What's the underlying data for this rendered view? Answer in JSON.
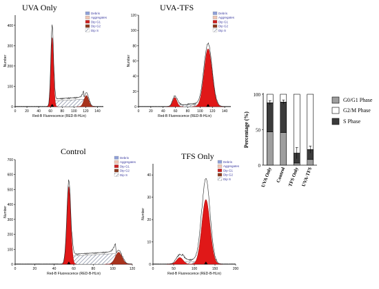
{
  "chart_data": [
    {
      "type": "area",
      "title": "UVA Only",
      "xlabel": "Red-B Fluorescence (RED-B-HLin)",
      "ylabel": "Number",
      "xlim": [
        0,
        150
      ],
      "ylim": [
        0,
        450
      ],
      "xticks": [
        0,
        20,
        40,
        60,
        80,
        100,
        120,
        140
      ],
      "yticks": [
        0,
        100,
        200,
        300,
        400
      ],
      "legend": [
        "Debris",
        "Aggregates",
        "Dip G1",
        "Dip G2",
        "Dip S"
      ],
      "legend_position": "top-right",
      "g1": {
        "center": 63,
        "width": 2.3,
        "height": 340
      },
      "g2": {
        "center": 121,
        "width": 4.0,
        "height": 55
      },
      "s_phase": {
        "from": 66,
        "to": 117,
        "level": 28
      },
      "outline_peak": 400,
      "marker_x": 63
    },
    {
      "type": "area",
      "title": "UVA-TFS",
      "xlabel": "Red-B Fluorescence (RED-B-HLin)",
      "ylabel": "Number",
      "xlim": [
        0,
        150
      ],
      "ylim": [
        0,
        120
      ],
      "xticks": [
        0,
        20,
        40,
        60,
        80,
        100,
        120,
        140
      ],
      "yticks": [
        0,
        20,
        40,
        60,
        80,
        100,
        120
      ],
      "legend": [
        "Debris",
        "Aggregates",
        "Dip G1",
        "Dip G2",
        "Dip S"
      ],
      "legend_position": "top-right",
      "g1": {
        "center": 59,
        "width": 3.5,
        "height": 12
      },
      "g2": {
        "center": 113,
        "width": 6.5,
        "height": 76
      },
      "s_phase": {
        "from": 62,
        "to": 108,
        "level": 2
      },
      "outline_peak": 82,
      "marker_x": 113
    },
    {
      "type": "area",
      "title": "Control",
      "xlabel": "Red-B Fluorescence (RED-B-HLin)",
      "ylabel": "Number",
      "xlim": [
        0,
        120
      ],
      "ylim": [
        0,
        700
      ],
      "xticks": [
        0,
        20,
        40,
        60,
        80,
        100,
        120
      ],
      "yticks": [
        0,
        100,
        200,
        300,
        400,
        500,
        600,
        700
      ],
      "legend": [
        "Debris",
        "Aggregates",
        "Dip G1",
        "Dip G2",
        "Dip S"
      ],
      "legend_position": "top-right",
      "g1": {
        "center": 55,
        "width": 2.0,
        "height": 520
      },
      "g2": {
        "center": 106,
        "width": 3.5,
        "height": 80
      },
      "s_phase": {
        "from": 58,
        "to": 103,
        "level": 55
      },
      "outline_peak": 560,
      "marker_x": 55
    },
    {
      "type": "area",
      "title": "TFS Only",
      "xlabel": "Red-B Fluorescence (RED-B-HLin)",
      "ylabel": "Number",
      "xlim": [
        0,
        200
      ],
      "ylim": [
        0,
        45
      ],
      "xticks": [
        0,
        50,
        100,
        150,
        200
      ],
      "yticks": [
        0,
        10,
        20,
        30,
        40
      ],
      "legend": [
        "Debris",
        "Aggregates",
        "Dip G1",
        "Dip G2",
        "Dip S"
      ],
      "legend_position": "top-right",
      "g1": {
        "center": 65,
        "width": 8,
        "height": 3
      },
      "g2": {
        "center": 128,
        "width": 10,
        "height": 29
      },
      "s_phase": {
        "from": 70,
        "to": 118,
        "level": 1
      },
      "outline_peak": 38,
      "marker_x": 128
    },
    {
      "type": "bar",
      "stacked": true,
      "categories": [
        "UVA Only",
        "Control",
        "TFS Only",
        "UVA-TFS"
      ],
      "ylabel": "Percentage (%)",
      "ylim": [
        0,
        100
      ],
      "yticks": [
        0,
        50,
        100
      ],
      "series": [
        {
          "name": "G0/G1 Phase",
          "values": [
            47,
            46,
            3,
            8
          ],
          "color": "#9e9e9e"
        },
        {
          "name": "S Phase",
          "values": [
            41,
            43,
            14,
            14
          ],
          "color": "#3b3b3b"
        },
        {
          "name": "G2/M Phase",
          "values": [
            12,
            11,
            83,
            78
          ],
          "color": "#ffffff"
        }
      ],
      "legend_order": [
        "G0/G1 Phase",
        "G2/M Phase",
        "S Phase"
      ],
      "legend_position": "right"
    }
  ]
}
